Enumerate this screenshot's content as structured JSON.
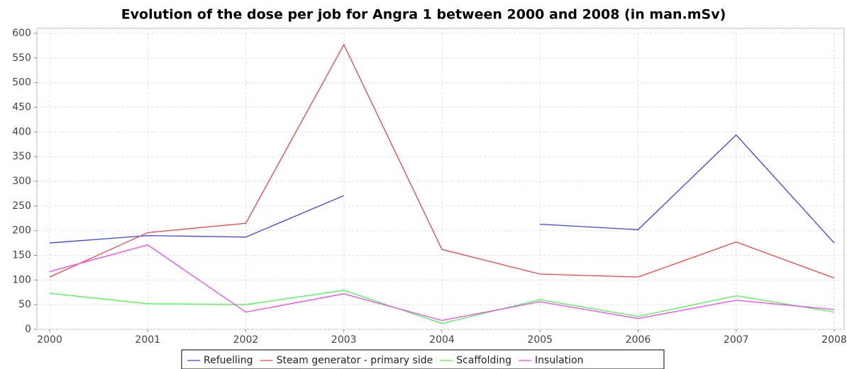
{
  "chart_data": {
    "type": "line",
    "title": "Evolution of the dose per job for Angra 1 between 2000 and 2008 (in man.mSv)",
    "x": [
      2000,
      2001,
      2002,
      2003,
      2004,
      2005,
      2006,
      2007,
      2008
    ],
    "xlim": [
      2000,
      2008
    ],
    "xticks": [
      2000,
      2001,
      2002,
      2003,
      2004,
      2005,
      2006,
      2007,
      2008
    ],
    "ylim": [
      0,
      600
    ],
    "yticks": [
      0,
      50,
      100,
      150,
      200,
      250,
      300,
      350,
      400,
      450,
      500,
      550,
      600
    ],
    "grid": true,
    "legend": "bottom",
    "series": [
      {
        "name": "Refuelling",
        "color": "#3f3fff",
        "values": [
          175,
          190,
          187,
          271,
          null,
          213,
          202,
          394,
          175
        ]
      },
      {
        "name": "Steam generator - primary side",
        "color": "#ff3f3f",
        "values": [
          106,
          196,
          215,
          577,
          162,
          112,
          106,
          177,
          104
        ]
      },
      {
        "name": "Scaffolding",
        "color": "#3fff3f",
        "values": [
          73,
          52,
          50,
          79,
          12,
          60,
          26,
          68,
          35
        ]
      },
      {
        "name": "Insulation",
        "color": "#ff3fff",
        "values": [
          117,
          171,
          35,
          72,
          18,
          56,
          22,
          59,
          40
        ]
      }
    ]
  }
}
